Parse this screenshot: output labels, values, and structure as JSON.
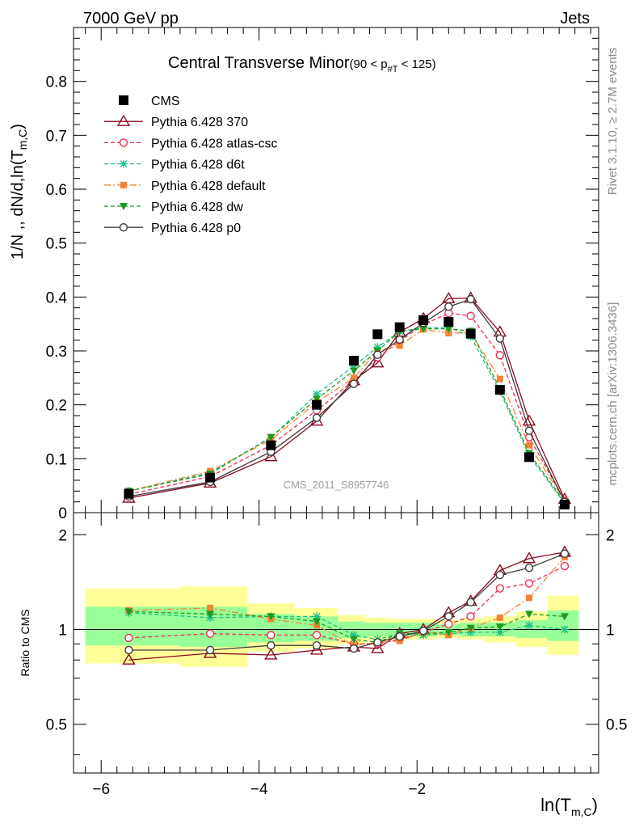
{
  "header": {
    "left": "7000 GeV pp",
    "right": "Jets"
  },
  "side_labels": {
    "rivet": "Rivet 3.1.10, ≥ 2.7M events",
    "mcplots": "mcplots.cern.ch [arXiv:1306.3436]"
  },
  "plot_title": {
    "main": "Central Transverse Minor",
    "range": "(90 < p",
    "sub": "#T",
    "end": " < 125)"
  },
  "watermark": "CMS_2011_S8957746",
  "ylabel_main": {
    "text": "1/N ,, dN/d,ln(T",
    "sub": "m,C",
    "close": ")"
  },
  "ylabel_ratio": "Ratio to CMS",
  "xlabel": {
    "text": "ln(T",
    "sub": "m,C",
    "close": ")"
  },
  "colors": {
    "cms": "#000000",
    "p370": "#8b0a1e",
    "atlas": "#ee2d50",
    "d6t": "#1ebf82",
    "default": "#f58432",
    "dw": "#1f9a1f",
    "p0": "#3c3c3c",
    "band_yellow": "#ffff99",
    "band_green": "#99ff99"
  },
  "chart_data": {
    "type": "line",
    "x": [
      -5.65,
      -4.62,
      -3.85,
      -3.27,
      -2.8,
      -2.5,
      -2.22,
      -1.92,
      -1.6,
      -1.32,
      -0.95,
      -0.58,
      -0.13
    ],
    "series": [
      {
        "name": "CMS",
        "key": "cms",
        "marker": "square",
        "line": "none",
        "values": [
          0.035,
          0.065,
          0.125,
          0.2,
          0.282,
          0.331,
          0.344,
          0.357,
          0.354,
          0.332,
          0.228,
          0.103,
          0.015
        ]
      },
      {
        "name": "Pythia 6.428 370",
        "key": "p370",
        "marker": "triangle-open",
        "line": "solid",
        "values": [
          0.027,
          0.055,
          0.104,
          0.17,
          0.245,
          0.278,
          0.335,
          0.36,
          0.397,
          0.398,
          0.335,
          0.17,
          0.025
        ]
      },
      {
        "name": "Pythia 6.428 atlas-csc",
        "key": "atlas",
        "marker": "circle-open",
        "line": "dashed",
        "values": [
          0.034,
          0.067,
          0.125,
          0.19,
          0.245,
          0.288,
          0.318,
          0.349,
          0.37,
          0.365,
          0.292,
          0.14,
          0.022
        ]
      },
      {
        "name": "Pythia 6.428 d6t",
        "key": "d6t",
        "marker": "star",
        "line": "dashed",
        "values": [
          0.04,
          0.074,
          0.139,
          0.22,
          0.272,
          0.307,
          0.336,
          0.343,
          0.344,
          0.327,
          0.225,
          0.106,
          0.017
        ]
      },
      {
        "name": "Pythia 6.428 default",
        "key": "default",
        "marker": "square-small",
        "line": "dashdot",
        "values": [
          0.04,
          0.077,
          0.135,
          0.205,
          0.25,
          0.3,
          0.31,
          0.34,
          0.333,
          0.334,
          0.248,
          0.125,
          0.022
        ]
      },
      {
        "name": "Pythia 6.428 dw",
        "key": "dw",
        "marker": "triangle-down",
        "line": "dashed",
        "values": [
          0.04,
          0.072,
          0.14,
          0.211,
          0.263,
          0.3,
          0.336,
          0.341,
          0.341,
          0.337,
          0.23,
          0.11,
          0.02
        ]
      },
      {
        "name": "Pythia 6.428 p0",
        "key": "p0",
        "marker": "circle-open",
        "line": "solid",
        "values": [
          0.03,
          0.057,
          0.113,
          0.176,
          0.239,
          0.293,
          0.321,
          0.352,
          0.382,
          0.396,
          0.323,
          0.152,
          0.02
        ]
      }
    ],
    "ratio": {
      "x": [
        -5.65,
        -4.62,
        -3.85,
        -3.27,
        -2.8,
        -2.5,
        -2.22,
        -1.92,
        -1.6,
        -1.32,
        -0.95,
        -0.58,
        -0.13
      ],
      "series": [
        {
          "key": "p370",
          "values": [
            0.8,
            0.84,
            0.83,
            0.86,
            0.88,
            0.87,
            0.97,
            1.0,
            1.13,
            1.23,
            1.54,
            1.68,
            1.76
          ]
        },
        {
          "key": "atlas",
          "values": [
            0.94,
            0.97,
            0.96,
            0.96,
            0.9,
            0.9,
            0.93,
            0.98,
            1.04,
            1.1,
            1.35,
            1.4,
            1.59
          ]
        },
        {
          "key": "d6t",
          "values": [
            1.13,
            1.09,
            1.1,
            1.1,
            0.96,
            0.93,
            0.97,
            0.96,
            0.97,
            0.98,
            0.98,
            1.03,
            1.0
          ]
        },
        {
          "key": "default",
          "values": [
            1.15,
            1.17,
            1.08,
            1.03,
            0.89,
            0.91,
            0.92,
            0.98,
            0.96,
            1.01,
            1.09,
            1.26,
            1.7
          ]
        },
        {
          "key": "dw",
          "values": [
            1.14,
            1.12,
            1.1,
            1.06,
            0.93,
            0.91,
            0.97,
            0.97,
            0.98,
            1.01,
            1.02,
            1.12,
            1.1
          ]
        },
        {
          "key": "p0",
          "values": [
            0.86,
            0.86,
            0.89,
            0.89,
            0.87,
            0.91,
            0.95,
            0.99,
            1.1,
            1.22,
            1.49,
            1.57,
            1.74
          ]
        }
      ]
    },
    "bands": [
      {
        "x0": -6.2,
        "x1": -5.0,
        "yellow": [
          0.78,
          1.35
        ],
        "green": [
          0.89,
          1.18
        ]
      },
      {
        "x0": -5.0,
        "x1": -4.15,
        "yellow": [
          0.76,
          1.37
        ],
        "green": [
          0.88,
          1.18
        ]
      },
      {
        "x0": -4.15,
        "x1": -3.55,
        "yellow": [
          0.85,
          1.21
        ],
        "green": [
          0.91,
          1.12
        ]
      },
      {
        "x0": -3.55,
        "x1": -3.0,
        "yellow": [
          0.87,
          1.17
        ],
        "green": [
          0.92,
          1.1
        ]
      },
      {
        "x0": -3.0,
        "x1": -2.65,
        "yellow": [
          0.9,
          1.11
        ],
        "green": [
          0.94,
          1.06
        ]
      },
      {
        "x0": -2.65,
        "x1": -2.35,
        "yellow": [
          0.92,
          1.09
        ],
        "green": [
          0.95,
          1.05
        ]
      },
      {
        "x0": -2.35,
        "x1": -2.05,
        "yellow": [
          0.93,
          1.08
        ],
        "green": [
          0.95,
          1.05
        ]
      },
      {
        "x0": -2.05,
        "x1": -1.75,
        "yellow": [
          0.93,
          1.08
        ],
        "green": [
          0.95,
          1.05
        ]
      },
      {
        "x0": -1.75,
        "x1": -1.45,
        "yellow": [
          0.94,
          1.07
        ],
        "green": [
          0.96,
          1.04
        ]
      },
      {
        "x0": -1.45,
        "x1": -1.15,
        "yellow": [
          0.93,
          1.09
        ],
        "green": [
          0.95,
          1.05
        ]
      },
      {
        "x0": -1.15,
        "x1": -0.75,
        "yellow": [
          0.91,
          1.1
        ],
        "green": [
          0.95,
          1.05
        ]
      },
      {
        "x0": -0.75,
        "x1": -0.35,
        "yellow": [
          0.88,
          1.14
        ],
        "green": [
          0.94,
          1.07
        ]
      },
      {
        "x0": -0.35,
        "x1": 0.05,
        "yellow": [
          0.83,
          1.28
        ],
        "green": [
          0.92,
          1.15
        ]
      }
    ],
    "xlim": [
      -6.35,
      0.3
    ],
    "ylim": [
      0,
      0.9
    ],
    "ratio_ylim": [
      0.35,
      2.35
    ],
    "xticks": [
      -6,
      -4,
      -2
    ],
    "xtick_labels": [
      "−6",
      "−4",
      "−2"
    ],
    "yticks": [
      0,
      0.1,
      0.2,
      0.3,
      0.4,
      0.5,
      0.6,
      0.7,
      0.8
    ],
    "ytick_labels": [
      "0",
      "0.1",
      "0.2",
      "0.3",
      "0.4",
      "0.5",
      "0.6",
      "0.7",
      "0.8"
    ],
    "ratio_ticks": [
      0.5,
      1,
      2
    ],
    "ratio_tick_labels": [
      "0.5",
      "1",
      "2"
    ],
    "legend_position": "top-left"
  }
}
